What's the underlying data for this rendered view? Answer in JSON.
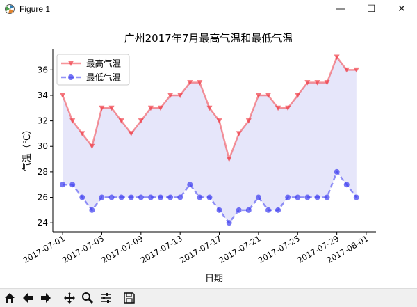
{
  "window": {
    "title": "Figure 1",
    "controls": {
      "minimize": "—",
      "maximize": "☐",
      "close": "✕"
    }
  },
  "toolbar": {
    "buttons": [
      {
        "name": "home-icon"
      },
      {
        "name": "back-icon"
      },
      {
        "name": "forward-icon"
      },
      {
        "name": "pan-icon"
      },
      {
        "name": "zoom-icon"
      },
      {
        "name": "configure-subplots-icon"
      },
      {
        "name": "save-icon"
      }
    ]
  },
  "colors": {
    "high": "#f03c46",
    "low": "#3c3cf0",
    "fill": "#e6e6fa"
  },
  "chart_data": {
    "type": "line",
    "title": "广州2017年7月最高气温和最低气温",
    "xlabel": "日期",
    "ylabel": "气温（℃）",
    "x": [
      "2017-07-01",
      "2017-07-02",
      "2017-07-03",
      "2017-07-04",
      "2017-07-05",
      "2017-07-06",
      "2017-07-07",
      "2017-07-08",
      "2017-07-09",
      "2017-07-10",
      "2017-07-11",
      "2017-07-12",
      "2017-07-13",
      "2017-07-14",
      "2017-07-15",
      "2017-07-16",
      "2017-07-17",
      "2017-07-18",
      "2017-07-19",
      "2017-07-20",
      "2017-07-21",
      "2017-07-22",
      "2017-07-23",
      "2017-07-24",
      "2017-07-25",
      "2017-07-26",
      "2017-07-27",
      "2017-07-28",
      "2017-07-29",
      "2017-07-30",
      "2017-07-31"
    ],
    "xticks": [
      "2017-07-01",
      "2017-07-05",
      "2017-07-09",
      "2017-07-13",
      "2017-07-17",
      "2017-07-21",
      "2017-07-25",
      "2017-07-29",
      "2017-08-01"
    ],
    "xlim": [
      "2017-06-30",
      "2017-08-02"
    ],
    "ylim": [
      23.3,
      37.6
    ],
    "yticks": [
      24,
      26,
      28,
      30,
      32,
      34,
      36
    ],
    "legend": "top-left",
    "grid": false,
    "fill_between": true,
    "series": [
      {
        "name": "最高气温",
        "marker": "triangle-down",
        "linestyle": "solid",
        "values": [
          34,
          32,
          31,
          30,
          33,
          33,
          32,
          31,
          32,
          33,
          33,
          34,
          34,
          35,
          35,
          33,
          32,
          29,
          31,
          32,
          34,
          34,
          33,
          33,
          34,
          35,
          35,
          35,
          37,
          36,
          36
        ]
      },
      {
        "name": "最低气温",
        "marker": "circle",
        "linestyle": "dashed",
        "values": [
          27,
          27,
          26,
          25,
          26,
          26,
          26,
          26,
          26,
          26,
          26,
          26,
          26,
          27,
          26,
          26,
          25,
          24,
          25,
          25,
          26,
          25,
          25,
          26,
          26,
          26,
          26,
          26,
          28,
          27,
          26
        ]
      }
    ]
  }
}
